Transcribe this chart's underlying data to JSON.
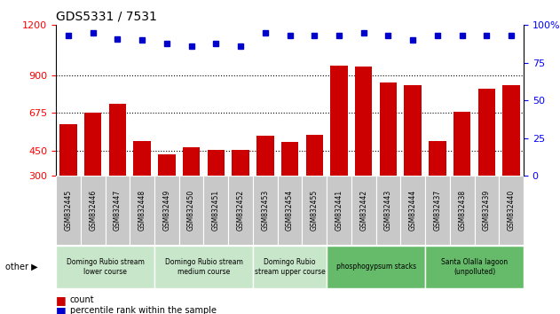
{
  "title": "GDS5331 / 7531",
  "categories": [
    "GSM832445",
    "GSM832446",
    "GSM832447",
    "GSM832448",
    "GSM832449",
    "GSM832450",
    "GSM832451",
    "GSM832452",
    "GSM832453",
    "GSM832454",
    "GSM832455",
    "GSM832441",
    "GSM832442",
    "GSM832443",
    "GSM832444",
    "GSM832437",
    "GSM832438",
    "GSM832439",
    "GSM832440"
  ],
  "counts": [
    610,
    675,
    730,
    510,
    430,
    470,
    455,
    455,
    540,
    505,
    545,
    960,
    955,
    858,
    840,
    510,
    680,
    820,
    840
  ],
  "percentiles": [
    93,
    95,
    91,
    90,
    88,
    86,
    88,
    86,
    95,
    93,
    93,
    93,
    95,
    93,
    90,
    93,
    93,
    93,
    93
  ],
  "groups": [
    {
      "label": "Domingo Rubio stream\nlower course",
      "start": 0,
      "end": 4,
      "color": "#c8e6c9"
    },
    {
      "label": "Domingo Rubio stream\nmedium course",
      "start": 4,
      "end": 8,
      "color": "#c8e6c9"
    },
    {
      "label": "Domingo Rubio\nstream upper course",
      "start": 8,
      "end": 11,
      "color": "#c8e6c9"
    },
    {
      "label": "phosphogypsum stacks",
      "start": 11,
      "end": 15,
      "color": "#66bb6a"
    },
    {
      "label": "Santa Olalla lagoon\n(unpolluted)",
      "start": 15,
      "end": 19,
      "color": "#66bb6a"
    }
  ],
  "ylim_left": [
    300,
    1200
  ],
  "ylim_right": [
    0,
    100
  ],
  "yticks_left": [
    300,
    450,
    675,
    900,
    1200
  ],
  "yticks_right": [
    0,
    25,
    50,
    75,
    100
  ],
  "bar_color": "#cc0000",
  "dot_color": "#0000cc",
  "legend_count_label": "count",
  "legend_pct_label": "percentile rank within the sample",
  "gridlines": [
    450,
    675,
    900
  ]
}
